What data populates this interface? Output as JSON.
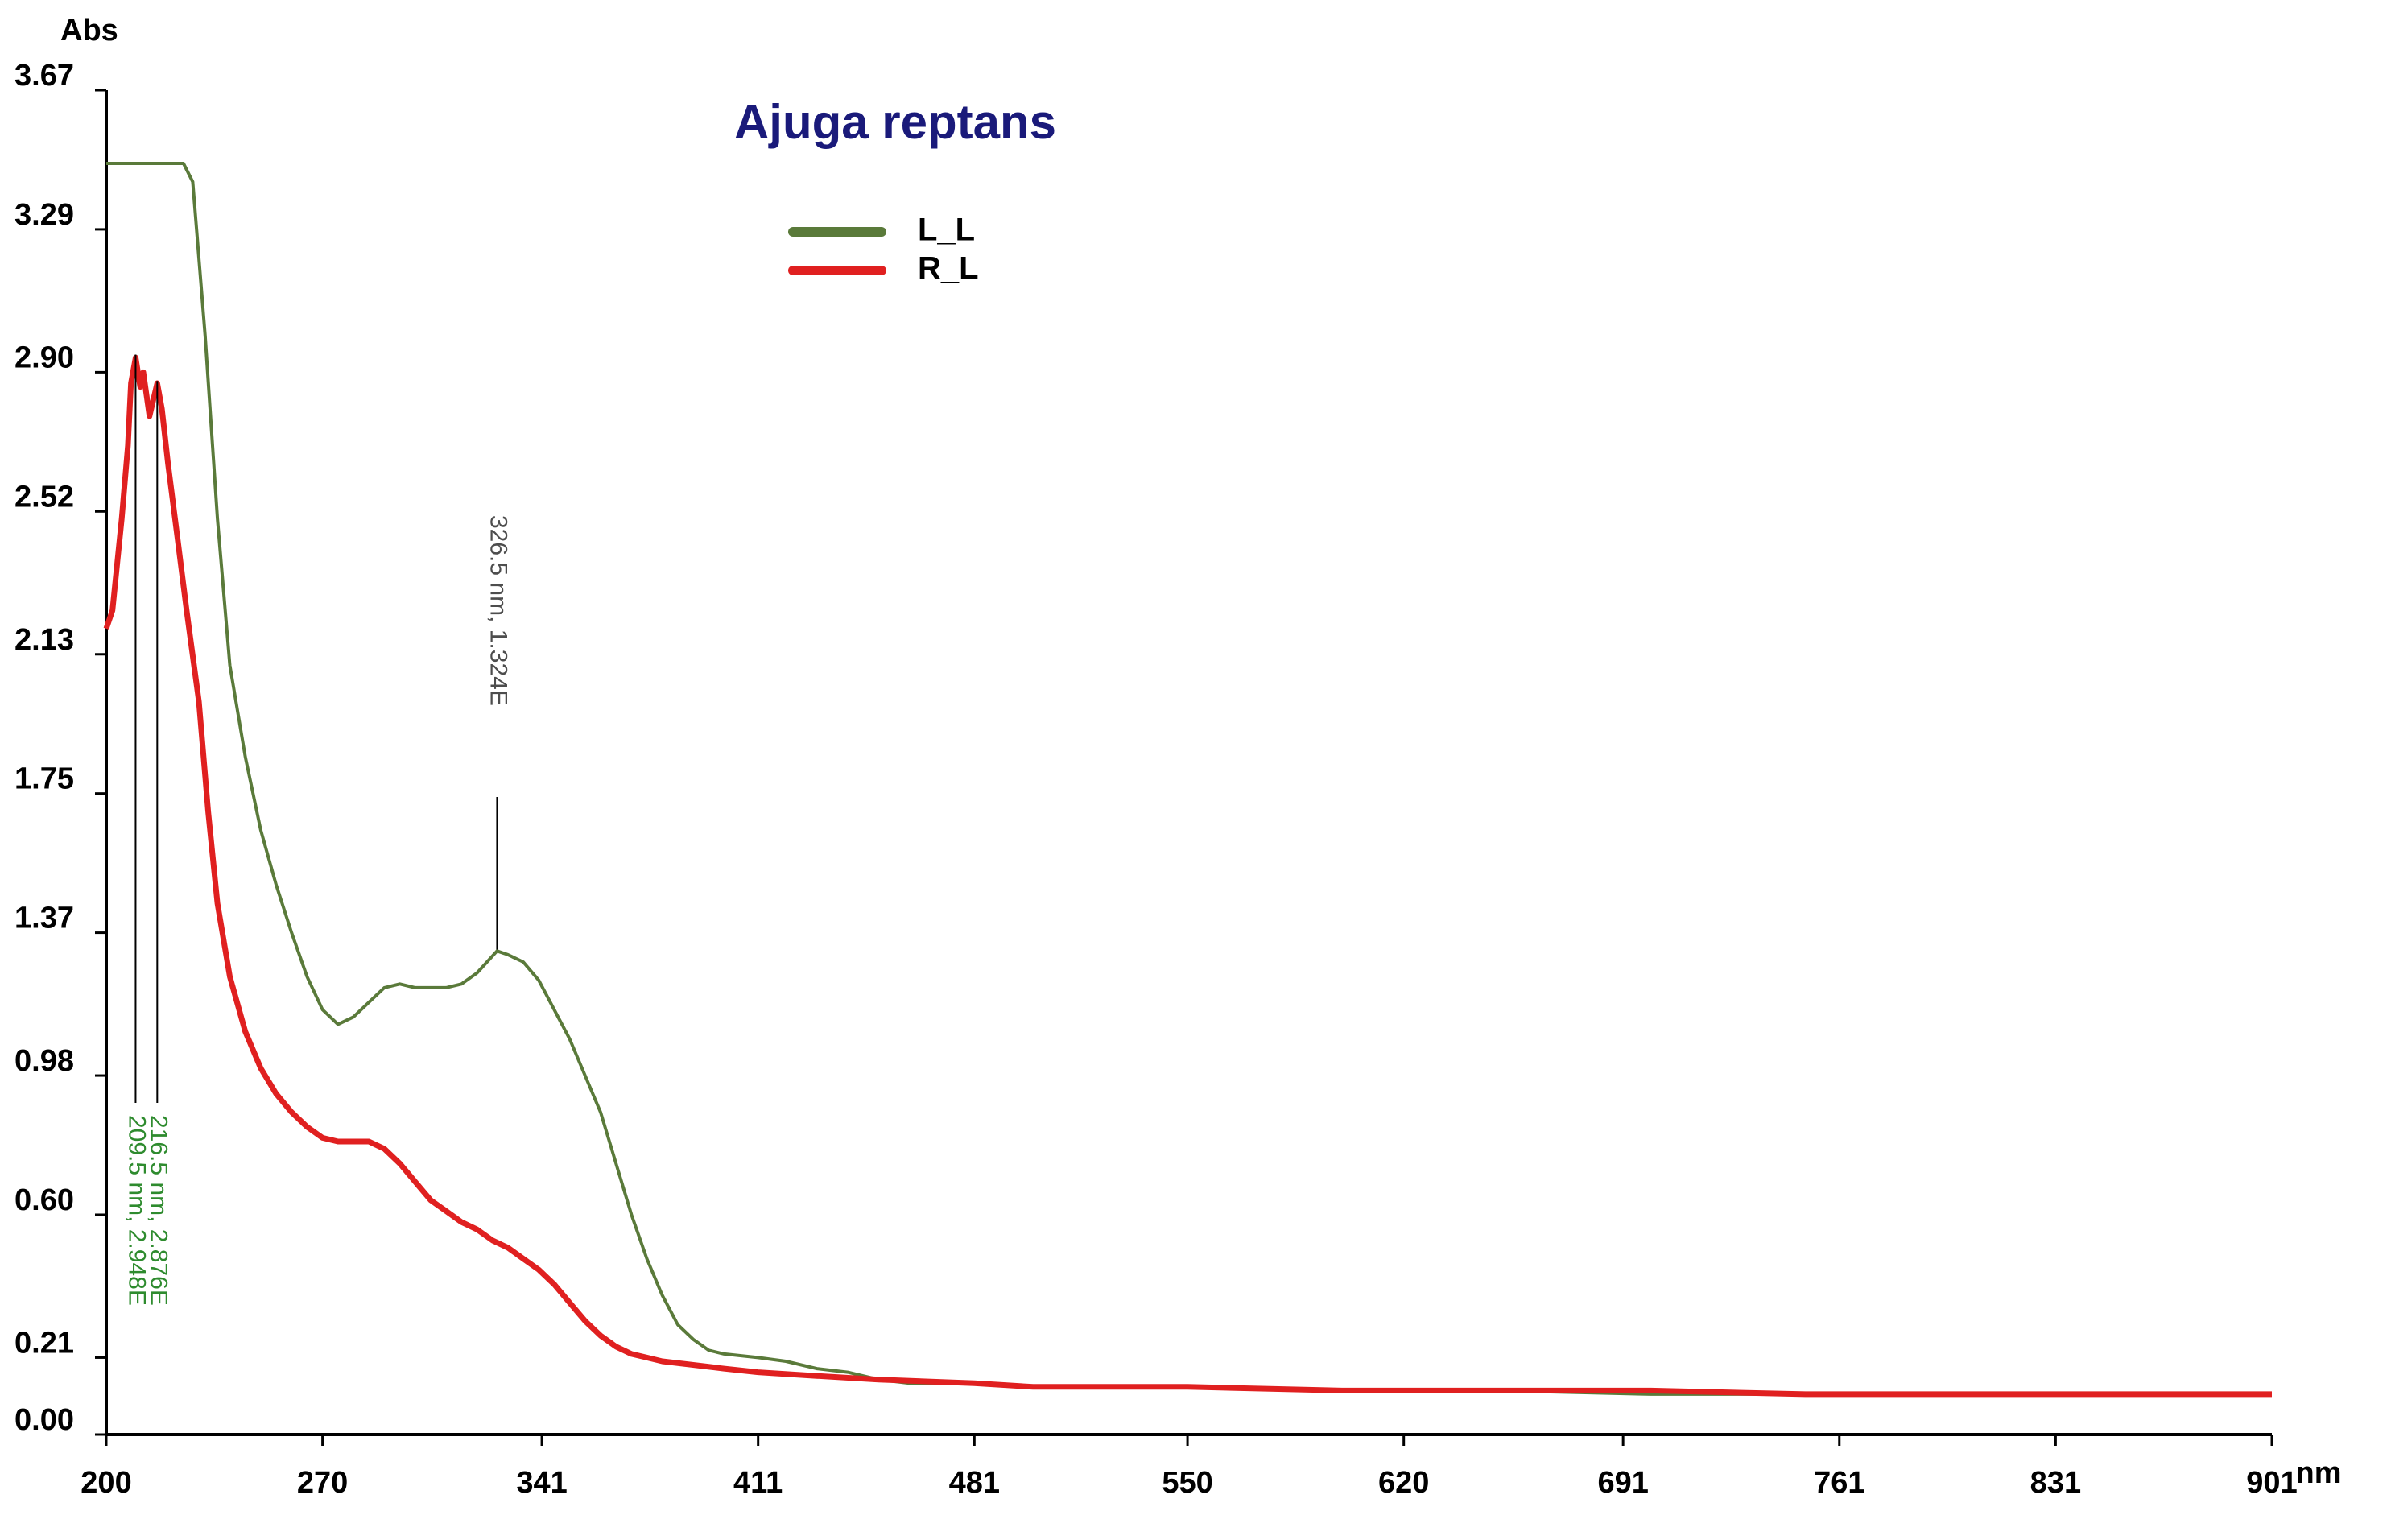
{
  "chart_data": {
    "type": "line",
    "title": "Ajuga reptans",
    "xlabel": "nm",
    "ylabel": "Abs",
    "xlim": [
      200,
      901
    ],
    "ylim": [
      0.0,
      3.67
    ],
    "x_ticks": [
      "200",
      "270",
      "341",
      "411",
      "481",
      "550",
      "620",
      "691",
      "761",
      "831",
      "901"
    ],
    "y_ticks": [
      "0.00",
      "0.21",
      "0.60",
      "0.98",
      "1.37",
      "1.75",
      "2.13",
      "2.52",
      "2.90",
      "3.29",
      "3.67"
    ],
    "legend_position": "top-center",
    "series": [
      {
        "name": "L_L",
        "color": "#5a7a3a",
        "points": [
          [
            200,
            3.47
          ],
          [
            205,
            3.47
          ],
          [
            210,
            3.47
          ],
          [
            215,
            3.47
          ],
          [
            220,
            3.47
          ],
          [
            225,
            3.47
          ],
          [
            228,
            3.42
          ],
          [
            232,
            3.0
          ],
          [
            236,
            2.5
          ],
          [
            240,
            2.1
          ],
          [
            245,
            1.85
          ],
          [
            250,
            1.65
          ],
          [
            255,
            1.5
          ],
          [
            260,
            1.37
          ],
          [
            265,
            1.25
          ],
          [
            270,
            1.16
          ],
          [
            275,
            1.12
          ],
          [
            280,
            1.14
          ],
          [
            285,
            1.18
          ],
          [
            290,
            1.22
          ],
          [
            295,
            1.23
          ],
          [
            300,
            1.22
          ],
          [
            305,
            1.22
          ],
          [
            310,
            1.22
          ],
          [
            315,
            1.23
          ],
          [
            320,
            1.26
          ],
          [
            326.5,
            1.32
          ],
          [
            330,
            1.31
          ],
          [
            335,
            1.29
          ],
          [
            340,
            1.24
          ],
          [
            345,
            1.16
          ],
          [
            350,
            1.08
          ],
          [
            355,
            0.98
          ],
          [
            360,
            0.88
          ],
          [
            365,
            0.74
          ],
          [
            370,
            0.6
          ],
          [
            375,
            0.48
          ],
          [
            380,
            0.38
          ],
          [
            385,
            0.3
          ],
          [
            390,
            0.26
          ],
          [
            395,
            0.23
          ],
          [
            400,
            0.22
          ],
          [
            411,
            0.21
          ],
          [
            420,
            0.2
          ],
          [
            430,
            0.18
          ],
          [
            440,
            0.17
          ],
          [
            450,
            0.15
          ],
          [
            460,
            0.14
          ],
          [
            481,
            0.14
          ],
          [
            500,
            0.13
          ],
          [
            550,
            0.13
          ],
          [
            600,
            0.12
          ],
          [
            650,
            0.12
          ],
          [
            700,
            0.11
          ],
          [
            750,
            0.11
          ],
          [
            800,
            0.11
          ],
          [
            850,
            0.11
          ],
          [
            901,
            0.11
          ]
        ]
      },
      {
        "name": "R_L",
        "color": "#e02020",
        "points": [
          [
            200,
            2.2
          ],
          [
            202,
            2.25
          ],
          [
            205,
            2.5
          ],
          [
            207,
            2.7
          ],
          [
            208,
            2.87
          ],
          [
            209.5,
            2.94
          ],
          [
            211,
            2.86
          ],
          [
            212,
            2.9
          ],
          [
            214,
            2.78
          ],
          [
            216.5,
            2.87
          ],
          [
            218,
            2.8
          ],
          [
            220,
            2.65
          ],
          [
            223,
            2.45
          ],
          [
            226,
            2.25
          ],
          [
            230,
            2.0
          ],
          [
            233,
            1.7
          ],
          [
            236,
            1.45
          ],
          [
            240,
            1.25
          ],
          [
            245,
            1.1
          ],
          [
            250,
            1.0
          ],
          [
            255,
            0.93
          ],
          [
            260,
            0.88
          ],
          [
            265,
            0.84
          ],
          [
            270,
            0.81
          ],
          [
            275,
            0.8
          ],
          [
            280,
            0.8
          ],
          [
            285,
            0.8
          ],
          [
            290,
            0.78
          ],
          [
            295,
            0.74
          ],
          [
            300,
            0.69
          ],
          [
            305,
            0.64
          ],
          [
            310,
            0.61
          ],
          [
            315,
            0.58
          ],
          [
            320,
            0.56
          ],
          [
            325,
            0.53
          ],
          [
            330,
            0.51
          ],
          [
            335,
            0.48
          ],
          [
            340,
            0.45
          ],
          [
            345,
            0.41
          ],
          [
            350,
            0.36
          ],
          [
            355,
            0.31
          ],
          [
            360,
            0.27
          ],
          [
            365,
            0.24
          ],
          [
            370,
            0.22
          ],
          [
            375,
            0.21
          ],
          [
            380,
            0.2
          ],
          [
            390,
            0.19
          ],
          [
            400,
            0.18
          ],
          [
            411,
            0.17
          ],
          [
            430,
            0.16
          ],
          [
            450,
            0.15
          ],
          [
            481,
            0.14
          ],
          [
            500,
            0.13
          ],
          [
            550,
            0.13
          ],
          [
            600,
            0.12
          ],
          [
            650,
            0.12
          ],
          [
            700,
            0.12
          ],
          [
            750,
            0.11
          ],
          [
            800,
            0.11
          ],
          [
            850,
            0.11
          ],
          [
            901,
            0.11
          ]
        ]
      }
    ],
    "annotations": [
      {
        "text": "209.5 nm, 2.948E",
        "x": 209.5,
        "y": 2.948,
        "color": "#2e8b2e"
      },
      {
        "text": "216.5 nm, 2.876E",
        "x": 216.5,
        "y": 2.876,
        "color": "#2e8b2e"
      },
      {
        "text": "326.5 nm, 1.324E",
        "x": 326.5,
        "y": 1.324,
        "color": "#4d4d4d"
      }
    ]
  }
}
